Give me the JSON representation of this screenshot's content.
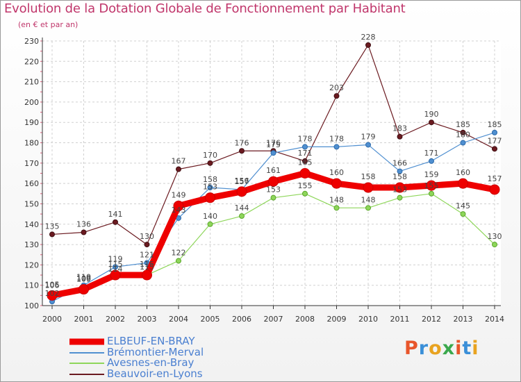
{
  "header": {
    "title": "Evolution de la Dotation Globale de Fonctionnement par Habitant",
    "subtitle": "(en € et par an)"
  },
  "brand": {
    "letters": [
      "P",
      "r",
      "o",
      "x",
      "i",
      "t",
      "i"
    ],
    "colors": [
      "#e8552a",
      "#3a8fd8",
      "#e8a320",
      "#3aa84c",
      "#e8552a",
      "#3a8fd8",
      "#e8a320"
    ]
  },
  "chart_data": {
    "type": "line",
    "title": "Evolution de la Dotation Globale de Fonctionnement par Habitant",
    "subtitle": "(en € et par an)",
    "xlabel": "",
    "ylabel": "",
    "ylim": [
      100,
      230
    ],
    "yticks": [
      100,
      110,
      120,
      130,
      140,
      150,
      160,
      170,
      180,
      190,
      200,
      210,
      220,
      230
    ],
    "categories": [
      "2000",
      "2001",
      "2002",
      "2003",
      "2004",
      "2005",
      "2006",
      "2007",
      "2008",
      "2009",
      "2010",
      "2011",
      "2012",
      "2013",
      "2014"
    ],
    "legend_position": "bottom-left",
    "series": [
      {
        "name": "ELBEUF-EN-BRAY",
        "color": "#ee0000",
        "values": [
          105,
          108,
          115,
          115,
          149,
          153,
          156,
          161,
          165,
          160,
          158,
          158,
          159,
          160,
          157
        ],
        "labels": [
          "105",
          "108",
          "115",
          "115",
          "149",
          "153",
          "156",
          "161",
          "165",
          "160",
          "158",
          "158",
          "159",
          "160",
          "157"
        ]
      },
      {
        "name": "Brémontier-Merval",
        "color": "#4f8fd0",
        "values": [
          102,
          110,
          119,
          121,
          143,
          158,
          157,
          175,
          178,
          178,
          179,
          166,
          171,
          180,
          185
        ],
        "labels": [
          "102",
          "110",
          "119",
          "121",
          "143",
          "158",
          "157",
          "175",
          "178",
          "178",
          "179",
          "166",
          "171",
          "180",
          "185"
        ]
      },
      {
        "name": "Avesnes-en-Bray",
        "color": "#8ed65a",
        "values": [
          106,
          109,
          114,
          115,
          122,
          140,
          144,
          153,
          155,
          148,
          148,
          153,
          155,
          145,
          130
        ],
        "labels": [
          "106",
          "109",
          "114",
          "115",
          "122",
          "140",
          "144",
          "153",
          "155",
          "148",
          "148",
          "153",
          "155",
          "145",
          "130"
        ]
      },
      {
        "name": "Beauvoir-en-Lyons",
        "color": "#6b1a20",
        "values": [
          135,
          136,
          141,
          130,
          167,
          170,
          176,
          176,
          171,
          203,
          228,
          183,
          190,
          185,
          177
        ],
        "labels": [
          "135",
          "136",
          "141",
          "130",
          "167",
          "170",
          "176",
          "176",
          "171",
          "203",
          "228",
          "183",
          "190",
          "185",
          "177"
        ]
      }
    ]
  }
}
